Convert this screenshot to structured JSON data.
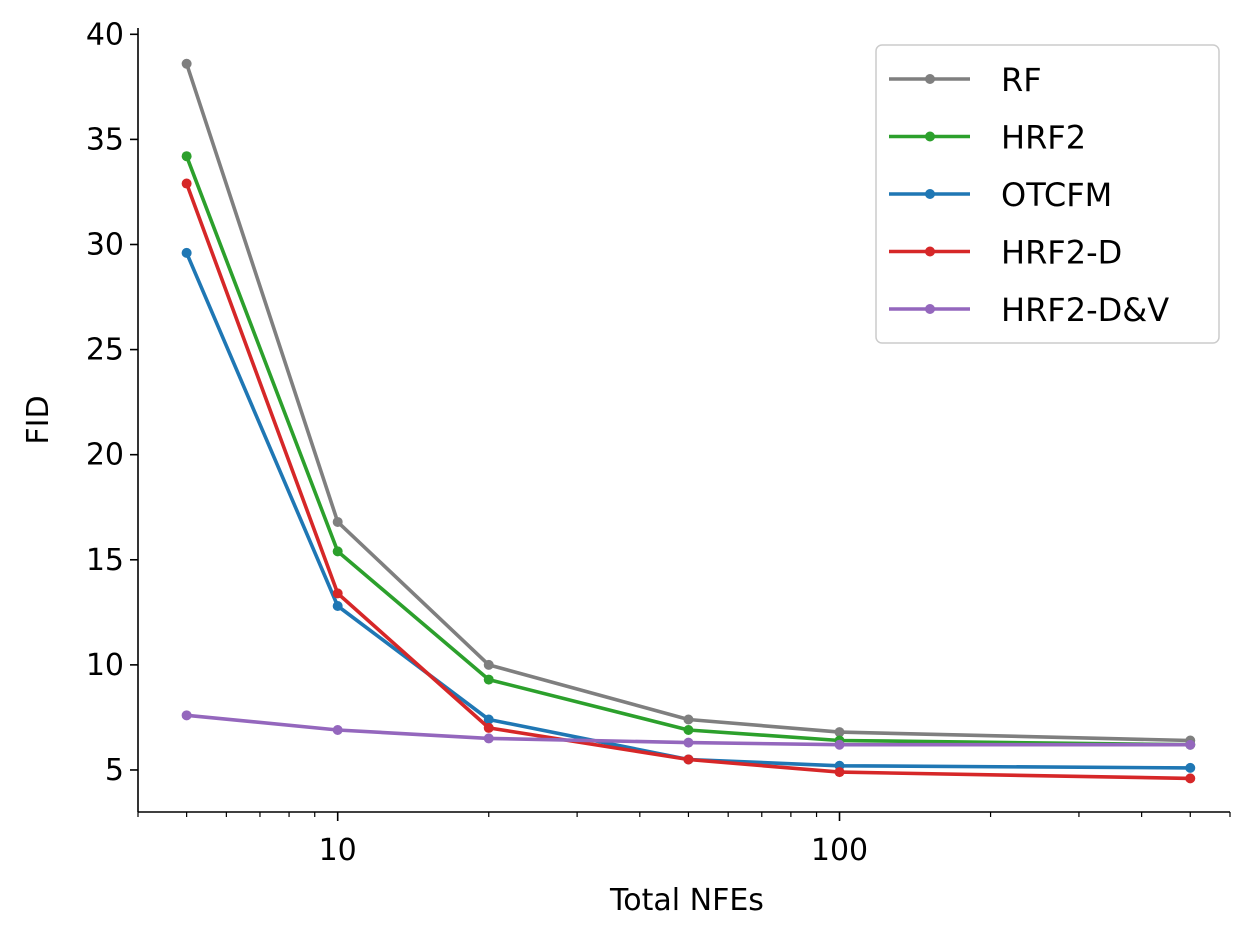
{
  "chart_data": {
    "type": "line",
    "title": "",
    "xlabel": "Total NFEs",
    "ylabel": "FID",
    "xscale": "log",
    "xlim": [
      4,
      600
    ],
    "ylim": [
      3,
      40.3
    ],
    "x_major_ticks": [
      10,
      100
    ],
    "x_major_tick_labels": [
      "10",
      "100"
    ],
    "y_ticks": [
      5,
      10,
      15,
      20,
      25,
      30,
      35,
      40
    ],
    "y_tick_labels": [
      "5",
      "10",
      "15",
      "20",
      "25",
      "30",
      "35",
      "40"
    ],
    "grid": false,
    "legend_position": "top-right",
    "x": [
      5,
      10,
      20,
      50,
      100,
      500
    ],
    "series": [
      {
        "name": "RF",
        "color": "#7f7f7f",
        "values": [
          38.6,
          16.8,
          10.0,
          7.4,
          6.8,
          6.4
        ]
      },
      {
        "name": "HRF2",
        "color": "#2ca02c",
        "values": [
          34.2,
          15.4,
          9.3,
          6.9,
          6.4,
          6.2
        ]
      },
      {
        "name": "OTCFM",
        "color": "#1f77b4",
        "values": [
          29.6,
          12.8,
          7.4,
          5.5,
          5.2,
          5.1
        ]
      },
      {
        "name": "HRF2-D",
        "color": "#d62728",
        "values": [
          32.9,
          13.4,
          7.0,
          5.5,
          4.9,
          4.6
        ]
      },
      {
        "name": "HRF2-D&V",
        "color": "#9467bd",
        "values": [
          7.6,
          6.9,
          6.5,
          6.3,
          6.2,
          6.2
        ]
      }
    ]
  }
}
